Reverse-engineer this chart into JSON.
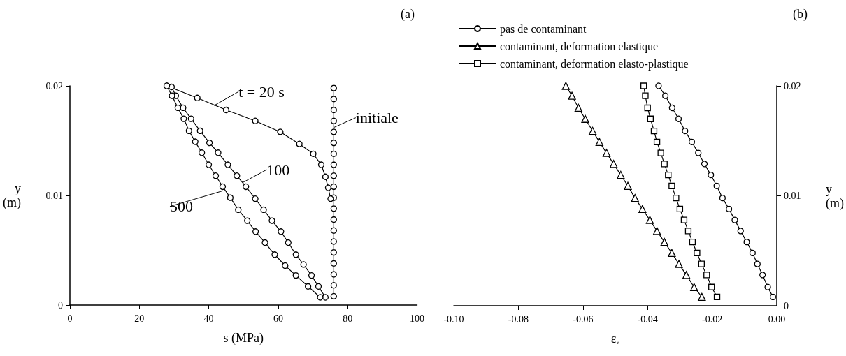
{
  "chart_data": [
    {
      "type": "line",
      "title": "(a)",
      "xlabel": "s (MPa)",
      "ylabel": "y\n(m)",
      "xlim": [
        0,
        100
      ],
      "ylim": [
        0,
        0.02
      ],
      "xticks": [
        0,
        20,
        40,
        60,
        80,
        100
      ],
      "yticks": [
        0,
        0.01,
        0.02
      ],
      "marker": "circle",
      "series": [
        {
          "color": "#000000",
          "x": [
            76,
            76,
            76,
            76,
            76,
            76,
            76,
            76,
            76,
            76,
            76,
            76,
            76,
            76,
            76,
            76,
            76,
            76,
            76,
            76
          ],
          "values": [
            0.0198,
            0.0188,
            0.0178,
            0.0168,
            0.0158,
            0.0148,
            0.0138,
            0.0128,
            0.0118,
            0.0108,
            0.0098,
            0.0088,
            0.0078,
            0.0068,
            0.0058,
            0.0048,
            0.0038,
            0.0028,
            0.0018,
            0.0008
          ]
        },
        {
          "color": "#000000",
          "x": [
            27.9,
            36.7,
            45,
            53.4,
            60.6,
            66.1,
            70.1,
            72.4,
            73.6,
            74.4,
            75.1
          ],
          "values": [
            0.02,
            0.0189,
            0.0178,
            0.0168,
            0.0158,
            0.0147,
            0.0138,
            0.0128,
            0.0117,
            0.0107,
            0.0097
          ]
        },
        {
          "color": "#000000",
          "x": [
            29.3,
            30.5,
            32.6,
            34.9,
            37.5,
            40.2,
            42.7,
            45.5,
            48.1,
            50.7,
            53.4,
            55.8,
            58.2,
            60.8,
            62.9,
            65.1,
            67.3,
            69.6,
            71.6,
            73.6
          ],
          "values": [
            0.0199,
            0.0191,
            0.018,
            0.017,
            0.0159,
            0.0148,
            0.0139,
            0.0128,
            0.0118,
            0.0108,
            0.0097,
            0.0087,
            0.0077,
            0.0067,
            0.0057,
            0.0046,
            0.0037,
            0.0027,
            0.0017,
            0.0007
          ]
        },
        {
          "color": "#000000",
          "x": [
            27.9,
            29.4,
            31.1,
            32.8,
            34.3,
            36.1,
            38,
            40,
            42,
            44,
            46.2,
            48.5,
            51.1,
            53.5,
            56.2,
            59,
            62,
            65.1,
            68.6,
            72.1
          ],
          "values": [
            0.02,
            0.0191,
            0.018,
            0.017,
            0.0159,
            0.0149,
            0.0139,
            0.0128,
            0.0118,
            0.0108,
            0.0098,
            0.0087,
            0.0077,
            0.0067,
            0.0057,
            0.0046,
            0.0036,
            0.0027,
            0.0017,
            0.0007
          ]
        }
      ],
      "annotations": [
        {
          "text": "t = 20 s",
          "x": 41.5,
          "y": 0.0182
        },
        {
          "text": "100",
          "x": 49.9,
          "y": 0.0112
        },
        {
          "text": "500",
          "x": 43.8,
          "y": 0.0104
        },
        {
          "text": "initiale",
          "x": 76,
          "y": 0.0162
        }
      ]
    },
    {
      "type": "line",
      "title": "(b)",
      "xlabel": "ε$_{v}$",
      "ylabel": "y\n(m)",
      "xlim": [
        -0.1,
        0
      ],
      "ylim": [
        0,
        0.02
      ],
      "xticks": [
        {
          "value": -0.1,
          "label": "-0.10"
        },
        {
          "value": -0.08,
          "label": "-0.08"
        },
        {
          "value": -0.06,
          "label": "-0.06"
        },
        {
          "value": -0.04,
          "label": "-0.04"
        },
        {
          "value": -0.02,
          "label": "-0.02"
        },
        {
          "value": 0,
          "label": "0.00"
        }
      ],
      "yticks": [
        0,
        0.01,
        0.02
      ],
      "legend": "top left",
      "series": [
        {
          "name": "pas de contaminant",
          "color": "#000000",
          "marker": "circle",
          "x": [
            -0.0366,
            -0.0345,
            -0.0324,
            -0.0304,
            -0.0284,
            -0.0263,
            -0.0243,
            -0.0224,
            -0.0204,
            -0.0186,
            -0.0168,
            -0.0148,
            -0.013,
            -0.0112,
            -0.0093,
            -0.0075,
            -0.006,
            -0.0044,
            -0.0028,
            -0.0012
          ],
          "values": [
            0.02,
            0.0191,
            0.018,
            0.017,
            0.0159,
            0.0149,
            0.0139,
            0.0129,
            0.0119,
            0.0109,
            0.0098,
            0.0088,
            0.0078,
            0.0068,
            0.0058,
            0.0048,
            0.0038,
            0.0028,
            0.0017,
            0.0008
          ]
        },
        {
          "name": "contaminant, deformation elastique",
          "color": "#000000",
          "marker": "triangle",
          "x": [
            -0.0653,
            -0.0634,
            -0.0614,
            -0.0593,
            -0.057,
            -0.0549,
            -0.0527,
            -0.0505,
            -0.0483,
            -0.0461,
            -0.0439,
            -0.0416,
            -0.0393,
            -0.0371,
            -0.0348,
            -0.0325,
            -0.0303,
            -0.028,
            -0.0256,
            -0.0232
          ],
          "values": [
            0.02,
            0.0191,
            0.018,
            0.017,
            0.0159,
            0.0149,
            0.0139,
            0.0129,
            0.0119,
            0.0109,
            0.0098,
            0.0088,
            0.0078,
            0.0068,
            0.0058,
            0.0048,
            0.0038,
            0.0028,
            0.0017,
            0.0008
          ]
        },
        {
          "name": "contaminant, deformation elasto-plastique",
          "color": "#000000",
          "marker": "square",
          "x": [
            -0.0412,
            -0.0407,
            -0.04,
            -0.0391,
            -0.038,
            -0.0371,
            -0.0359,
            -0.0348,
            -0.0336,
            -0.0325,
            -0.0312,
            -0.03,
            -0.0287,
            -0.0274,
            -0.0261,
            -0.0247,
            -0.0233,
            -0.0217,
            -0.0202,
            -0.0185
          ],
          "values": [
            0.02,
            0.0191,
            0.018,
            0.017,
            0.0159,
            0.0149,
            0.0139,
            0.0129,
            0.0119,
            0.0109,
            0.0098,
            0.0088,
            0.0078,
            0.0068,
            0.0058,
            0.0048,
            0.0038,
            0.0028,
            0.0017,
            0.0008
          ]
        }
      ]
    }
  ]
}
